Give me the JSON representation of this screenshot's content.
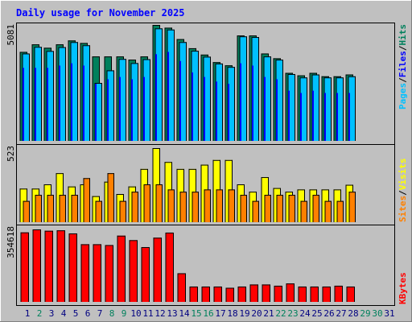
{
  "title": "Daily usage for November 2025",
  "colors": {
    "hits": "#00805c",
    "files": "#0000ff",
    "pages": "#00c0ff",
    "visits": "#ffff00",
    "sites": "#ff8000",
    "kbytes": "#ff0000",
    "title": "#0000ff",
    "weekday_label": "#000080",
    "weekend_label": "#00805c",
    "panel_bg": "#c0c0c0"
  },
  "chart_data": [
    {
      "type": "bar",
      "panel": "hits-files-pages",
      "title": "Daily usage for November 2025",
      "ymax_label": "5081",
      "ylim": [
        0,
        5081
      ],
      "legend": [
        "Pages",
        "Files",
        "Hits"
      ],
      "categories": [
        "1",
        "2",
        "3",
        "4",
        "5",
        "6",
        "7",
        "8",
        "9",
        "10",
        "11",
        "12",
        "13",
        "14",
        "15",
        "16",
        "17",
        "18",
        "19",
        "20",
        "21",
        "22",
        "23",
        "24",
        "25",
        "26",
        "27",
        "28",
        "29",
        "30",
        "31"
      ],
      "series": [
        {
          "name": "Hits",
          "values": [
            3900,
            4230,
            4080,
            4230,
            4400,
            4290,
            3700,
            3700,
            3700,
            3560,
            3700,
            5081,
            4960,
            4460,
            4060,
            3780,
            3450,
            3310,
            4620,
            4620,
            3830,
            3620,
            2980,
            2870,
            2980,
            2830,
            2830,
            2910,
            0,
            0,
            0
          ]
        },
        {
          "name": "Pages",
          "values": [
            3830,
            4120,
            3940,
            4110,
            4330,
            4190,
            2540,
            3090,
            3590,
            3410,
            3580,
            4930,
            4880,
            4330,
            3950,
            3690,
            3390,
            3240,
            4580,
            4550,
            3700,
            3560,
            2930,
            2780,
            2910,
            2780,
            2780,
            2830,
            0,
            0,
            0
          ]
        },
        {
          "name": "Files",
          "values": [
            3200,
            3200,
            3200,
            3300,
            3400,
            3300,
            2500,
            2700,
            2800,
            2700,
            2800,
            3800,
            3900,
            3500,
            3000,
            2800,
            2600,
            2500,
            3400,
            3300,
            2800,
            2700,
            2200,
            2100,
            2200,
            2100,
            2100,
            2100,
            0,
            0,
            0
          ]
        }
      ]
    },
    {
      "type": "bar",
      "panel": "visits-sites",
      "ymax_label": "523",
      "ylim": [
        0,
        523
      ],
      "legend": [
        "Sites",
        "Visits"
      ],
      "categories": [
        "1",
        "2",
        "3",
        "4",
        "5",
        "6",
        "7",
        "8",
        "9",
        "10",
        "11",
        "12",
        "13",
        "14",
        "15",
        "16",
        "17",
        "18",
        "19",
        "20",
        "21",
        "22",
        "23",
        "24",
        "25",
        "26",
        "27",
        "28",
        "29",
        "30",
        "31"
      ],
      "series": [
        {
          "name": "Visits",
          "values": [
            237,
            237,
            267,
            346,
            252,
            267,
            184,
            286,
            199,
            252,
            376,
            523,
            425,
            376,
            376,
            406,
            439,
            439,
            267,
            215,
            318,
            241,
            215,
            231,
            231,
            231,
            231,
            264,
            0,
            0,
            0
          ]
        },
        {
          "name": "Sites",
          "values": [
            150,
            193,
            193,
            193,
            193,
            311,
            150,
            346,
            150,
            215,
            267,
            267,
            231,
            215,
            215,
            231,
            231,
            231,
            193,
            150,
            193,
            193,
            193,
            150,
            193,
            150,
            150,
            215,
            0,
            0,
            0
          ]
        }
      ]
    },
    {
      "type": "bar",
      "panel": "kbytes",
      "ymax_label": "354618",
      "ylim": [
        0,
        354618
      ],
      "legend": [
        "KBytes"
      ],
      "categories": [
        "1",
        "2",
        "3",
        "4",
        "5",
        "6",
        "7",
        "8",
        "9",
        "10",
        "11",
        "12",
        "13",
        "14",
        "15",
        "16",
        "17",
        "18",
        "19",
        "20",
        "21",
        "22",
        "23",
        "24",
        "25",
        "26",
        "27",
        "28",
        "29",
        "30",
        "31"
      ],
      "series": [
        {
          "name": "KBytes",
          "values": [
            340000,
            354618,
            348000,
            350000,
            335000,
            282000,
            282000,
            278000,
            324000,
            302000,
            268000,
            314000,
            339000,
            140000,
            75000,
            75000,
            75000,
            69000,
            75000,
            85000,
            85000,
            79000,
            90000,
            75000,
            75000,
            75000,
            79000,
            75000,
            0,
            0,
            0
          ]
        }
      ]
    }
  ],
  "days": [
    {
      "label": "1",
      "weekend": false
    },
    {
      "label": "2",
      "weekend": true
    },
    {
      "label": "3",
      "weekend": false
    },
    {
      "label": "4",
      "weekend": false
    },
    {
      "label": "5",
      "weekend": false
    },
    {
      "label": "6",
      "weekend": false
    },
    {
      "label": "7",
      "weekend": false
    },
    {
      "label": "8",
      "weekend": true
    },
    {
      "label": "9",
      "weekend": true
    },
    {
      "label": "10",
      "weekend": false
    },
    {
      "label": "11",
      "weekend": false
    },
    {
      "label": "12",
      "weekend": false
    },
    {
      "label": "13",
      "weekend": false
    },
    {
      "label": "14",
      "weekend": false
    },
    {
      "label": "15",
      "weekend": true
    },
    {
      "label": "16",
      "weekend": true
    },
    {
      "label": "17",
      "weekend": false
    },
    {
      "label": "18",
      "weekend": false
    },
    {
      "label": "19",
      "weekend": false
    },
    {
      "label": "20",
      "weekend": false
    },
    {
      "label": "21",
      "weekend": false
    },
    {
      "label": "22",
      "weekend": true
    },
    {
      "label": "23",
      "weekend": true
    },
    {
      "label": "24",
      "weekend": false
    },
    {
      "label": "25",
      "weekend": false
    },
    {
      "label": "26",
      "weekend": false
    },
    {
      "label": "27",
      "weekend": false
    },
    {
      "label": "28",
      "weekend": false
    },
    {
      "label": "29",
      "weekend": true
    },
    {
      "label": "30",
      "weekend": true
    },
    {
      "label": "31",
      "weekend": false
    }
  ]
}
